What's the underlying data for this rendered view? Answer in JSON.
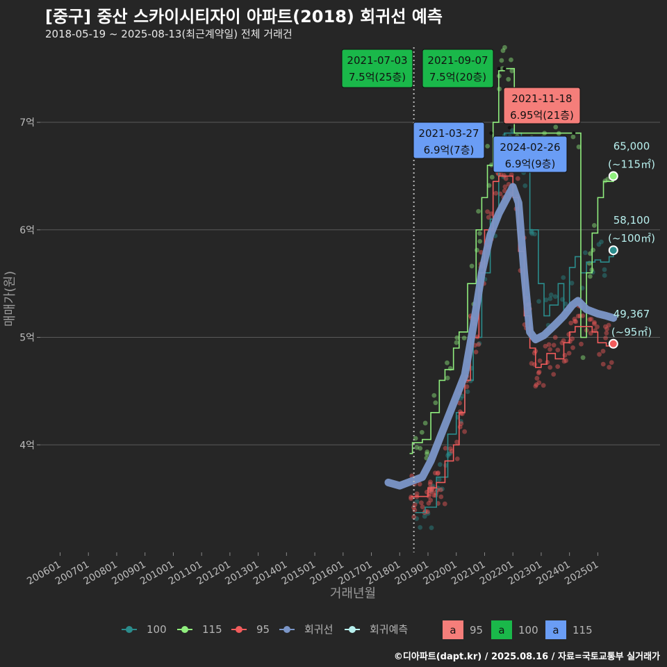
{
  "title": "[중구] 중산 스카이시티자이 아파트(2018) 회귀선 예측",
  "subtitle": "2018-05-19 ~ 2025-08-13(최근계약일) 전체 거래건",
  "credit": "©디아파트(dapt.kr) / 2025.08.16 / 자료=국토교통부 실거래가",
  "colors": {
    "s100": "#2b8c8c",
    "s115": "#90ee7e",
    "s95": "#f25c5c",
    "regression": "#7b96c8",
    "forecast": "#b8f0ee",
    "ann_green": "#1ab84a",
    "ann_red": "#f57e7a",
    "ann_blue": "#6a9df5"
  },
  "chart_data": {
    "type": "scatter",
    "xlabel": "거래년월",
    "ylabel": "매매가(원)",
    "x_ticks": [
      "200601",
      "200701",
      "200801",
      "200901",
      "201001",
      "201101",
      "201201",
      "201301",
      "201401",
      "201501",
      "201601",
      "201701",
      "201801",
      "201901",
      "202001",
      "202101",
      "202201",
      "202301",
      "202401",
      "202501"
    ],
    "y_ticks": [
      {
        "value": 4,
        "label": "4억"
      },
      {
        "value": 5,
        "label": "5억"
      },
      {
        "value": 6,
        "label": "6억"
      },
      {
        "value": 7,
        "label": "7억"
      }
    ],
    "ylim": [
      3.0,
      7.75
    ],
    "xlim": [
      2005.3,
      2027.2
    ],
    "vline_x": 2018.5,
    "series": [
      {
        "name": "100",
        "color": "#2b8c8c",
        "step": [
          [
            2018.55,
            3.37
          ],
          [
            2018.9,
            3.42
          ],
          [
            2019.3,
            3.7
          ],
          [
            2019.7,
            4.1
          ],
          [
            2020.0,
            4.3
          ],
          [
            2020.3,
            4.6
          ],
          [
            2020.6,
            5.0
          ],
          [
            2020.9,
            5.6
          ],
          [
            2021.2,
            6.1
          ],
          [
            2021.5,
            6.6
          ],
          [
            2021.7,
            6.9
          ],
          [
            2021.9,
            6.9
          ],
          [
            2022.3,
            6.6
          ],
          [
            2022.6,
            6.0
          ],
          [
            2022.9,
            5.5
          ],
          [
            2023.1,
            5.2
          ],
          [
            2023.3,
            5.3
          ],
          [
            2023.6,
            5.5
          ],
          [
            2023.8,
            5.25
          ],
          [
            2024.0,
            5.65
          ],
          [
            2024.2,
            5.75
          ],
          [
            2024.4,
            5.6
          ],
          [
            2024.6,
            5.7
          ],
          [
            2024.9,
            5.72
          ],
          [
            2025.1,
            5.7
          ],
          [
            2025.4,
            5.75
          ],
          [
            2025.55,
            5.81
          ]
        ]
      },
      {
        "name": "115",
        "color": "#90ee7e",
        "step": [
          [
            2018.35,
            3.92
          ],
          [
            2018.45,
            4.02
          ],
          [
            2018.8,
            4.05
          ],
          [
            2019.1,
            4.3
          ],
          [
            2019.4,
            4.6
          ],
          [
            2019.6,
            4.7
          ],
          [
            2019.9,
            4.9
          ],
          [
            2020.1,
            5.05
          ],
          [
            2020.4,
            5.5
          ],
          [
            2020.7,
            6.0
          ],
          [
            2020.9,
            6.3
          ],
          [
            2021.1,
            6.6
          ],
          [
            2021.3,
            7.0
          ],
          [
            2021.5,
            7.48
          ],
          [
            2021.7,
            7.5
          ],
          [
            2021.9,
            7.5
          ],
          [
            2022.0,
            7.5
          ],
          [
            2022.05,
            6.9
          ],
          [
            2024.3,
            6.9
          ],
          [
            2024.4,
            5.0
          ],
          [
            2024.6,
            5.6
          ],
          [
            2024.8,
            5.97
          ],
          [
            2025.0,
            6.3
          ],
          [
            2025.2,
            6.45
          ],
          [
            2025.55,
            6.5
          ]
        ]
      },
      {
        "name": "95",
        "color": "#f25c5c",
        "step": [
          [
            2018.4,
            3.52
          ],
          [
            2018.7,
            3.52
          ],
          [
            2019.0,
            3.6
          ],
          [
            2019.3,
            3.65
          ],
          [
            2019.6,
            3.85
          ],
          [
            2019.9,
            4.0
          ],
          [
            2020.1,
            4.3
          ],
          [
            2020.3,
            4.6
          ],
          [
            2020.5,
            5.0
          ],
          [
            2020.8,
            5.6
          ],
          [
            2021.0,
            6.0
          ],
          [
            2021.3,
            6.45
          ],
          [
            2021.5,
            6.5
          ],
          [
            2021.8,
            6.5
          ],
          [
            2022.0,
            6.3
          ],
          [
            2022.2,
            5.8
          ],
          [
            2022.4,
            5.2
          ],
          [
            2022.6,
            4.9
          ],
          [
            2022.8,
            4.72
          ],
          [
            2023.0,
            4.75
          ],
          [
            2023.2,
            4.85
          ],
          [
            2023.5,
            4.8
          ],
          [
            2023.8,
            4.95
          ],
          [
            2024.0,
            5.05
          ],
          [
            2024.2,
            5.1
          ],
          [
            2024.5,
            5.1
          ],
          [
            2024.8,
            5.05
          ],
          [
            2025.0,
            4.95
          ],
          [
            2025.3,
            4.92
          ],
          [
            2025.55,
            4.94
          ]
        ]
      },
      {
        "name": "회귀선",
        "color": "#7b96c8",
        "line": [
          [
            2017.6,
            3.65
          ],
          [
            2018.0,
            3.62
          ],
          [
            2018.4,
            3.66
          ],
          [
            2018.8,
            3.7
          ],
          [
            2019.1,
            3.85
          ],
          [
            2019.4,
            4.05
          ],
          [
            2019.7,
            4.25
          ],
          [
            2020.0,
            4.45
          ],
          [
            2020.3,
            4.65
          ],
          [
            2020.6,
            5.1
          ],
          [
            2020.9,
            5.6
          ],
          [
            2021.2,
            5.95
          ],
          [
            2021.5,
            6.15
          ],
          [
            2021.8,
            6.3
          ],
          [
            2022.0,
            6.4
          ],
          [
            2022.2,
            6.25
          ],
          [
            2022.4,
            5.6
          ],
          [
            2022.6,
            5.05
          ],
          [
            2022.8,
            4.98
          ],
          [
            2023.1,
            5.02
          ],
          [
            2023.5,
            5.12
          ],
          [
            2023.8,
            5.2
          ],
          [
            2024.1,
            5.3
          ],
          [
            2024.3,
            5.34
          ],
          [
            2024.6,
            5.26
          ],
          [
            2025.0,
            5.22
          ],
          [
            2025.3,
            5.2
          ],
          [
            2025.55,
            5.18
          ]
        ]
      },
      {
        "name": "회귀예측",
        "color": "#b8f0ee"
      }
    ],
    "annotations": [
      {
        "date": "2021-07-03",
        "value": "7.5억(25층)",
        "style": "green",
        "x": 2021.5,
        "y": 7.5
      },
      {
        "date": "2021-09-07",
        "value": "7.5억(20층)",
        "style": "green",
        "x": 2021.7,
        "y": 7.5
      },
      {
        "date": "2021-11-18",
        "value": "6.95억(21층)",
        "style": "red",
        "x": 2021.88,
        "y": 6.95
      },
      {
        "date": "2021-03-27",
        "value": "6.9억(7층)",
        "style": "blue",
        "x": 2021.23,
        "y": 6.9
      },
      {
        "date": "2024-02-26",
        "value": "6.9억(9층)",
        "style": "blue",
        "x": 2024.15,
        "y": 6.9
      }
    ],
    "end_labels": [
      {
        "value": "65,000",
        "area": "(~115㎡)",
        "x": 2025.55,
        "y": 6.5,
        "color": "#90ee7e"
      },
      {
        "value": "58,100",
        "area": "(~100㎡)",
        "x": 2025.55,
        "y": 5.81,
        "color": "#2b8c8c"
      },
      {
        "value": "49,367",
        "area": "(~95㎡)",
        "x": 2025.55,
        "y": 4.94,
        "color": "#f25c5c"
      }
    ],
    "legend": {
      "placement": "bottom",
      "point_items": [
        "100",
        "115",
        "95",
        "회귀선",
        "회귀예측"
      ],
      "label_items": [
        {
          "glyph": "a",
          "label": "95",
          "color": "#f57e7a"
        },
        {
          "glyph": "a",
          "label": "100",
          "color": "#1ab84a"
        },
        {
          "glyph": "a",
          "label": "115",
          "color": "#6a9df5"
        }
      ]
    }
  }
}
